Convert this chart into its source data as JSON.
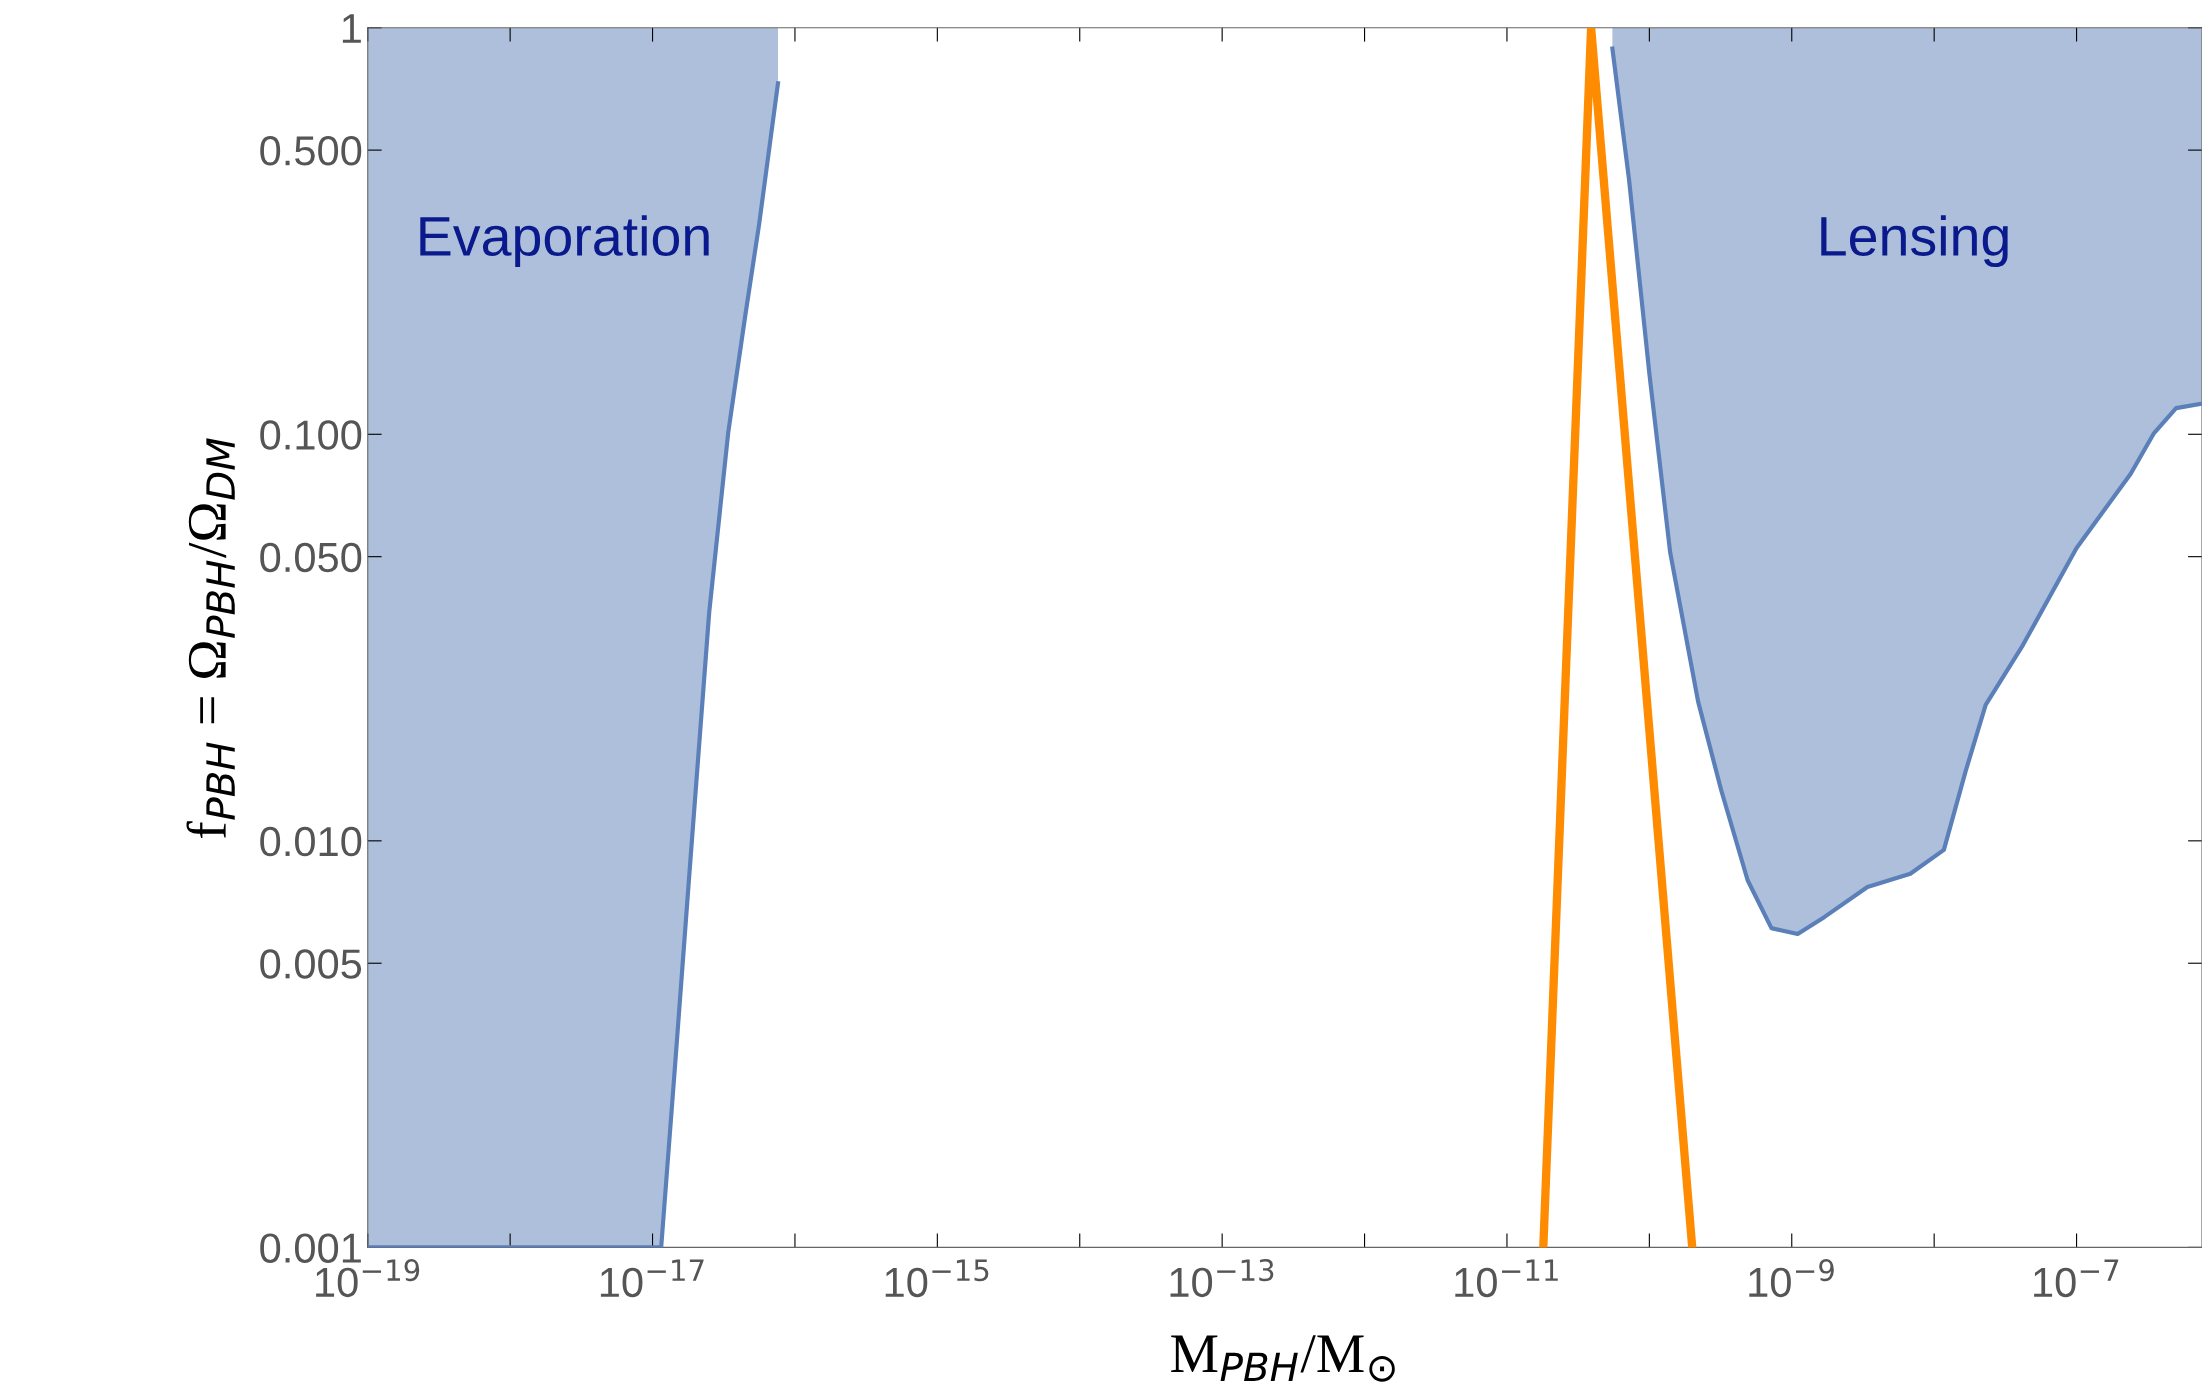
{
  "chart_data": {
    "type": "line",
    "xlabel": "M$_{PBH}$/M$_{⊙}$",
    "ylabel": "f$_{PBH}$ = Ω$_{PBH}$/Ω$_{DM}$",
    "log": "xy",
    "grid": false,
    "legend": false,
    "xlim": [
      1e-19,
      7.6e-07
    ],
    "ylim": [
      0.001,
      1
    ],
    "xticks": [
      {
        "value": 1e-19,
        "label": "10$^{−19}$"
      },
      {
        "value": 1e-18,
        "label": null
      },
      {
        "value": 1e-17,
        "label": "10$^{−17}$"
      },
      {
        "value": 1e-16,
        "label": null
      },
      {
        "value": 1e-15,
        "label": "10$^{−15}$"
      },
      {
        "value": 1e-14,
        "label": null
      },
      {
        "value": 1e-13,
        "label": "10$^{−13}$"
      },
      {
        "value": 1e-12,
        "label": null
      },
      {
        "value": 1e-11,
        "label": "10$^{−11}$"
      },
      {
        "value": 1e-10,
        "label": null
      },
      {
        "value": 1e-09,
        "label": "10$^{−9}$"
      },
      {
        "value": 1e-08,
        "label": null
      },
      {
        "value": 1e-07,
        "label": "10$^{−7}$"
      }
    ],
    "yticks": [
      {
        "value": 0.001,
        "label": "0.001"
      },
      {
        "value": 0.005,
        "label": "0.005"
      },
      {
        "value": 0.01,
        "label": "0.010"
      },
      {
        "value": 0.05,
        "label": "0.050"
      },
      {
        "value": 0.1,
        "label": "0.100"
      },
      {
        "value": 0.5,
        "label": "0.500"
      },
      1
    ],
    "series": [
      {
        "color": "#5b7fb8",
        "x": [
          1e-19,
          1.15e-17,
          1.45e-17,
          1.8e-17,
          2.5e-17,
          3.4e-17,
          4.5e-17,
          5.6e-17,
          7.6e-17
        ],
        "values": [
          0.001,
          0.001,
          0.0029,
          0.008,
          0.0365,
          0.101,
          0.198,
          0.328,
          0.73
        ],
        "lower": [
          0.001,
          0.001,
          0.0029,
          0.008,
          0.0365,
          0.101,
          0.198,
          0.328,
          0.73
        ],
        "upper": [
          1,
          1,
          1,
          1,
          1,
          1,
          1,
          1,
          1
        ]
      },
      {
        "color": "#5b7fb8",
        "x": [
          5.5e-11,
          7.2e-11,
          1e-10,
          1.4e-10,
          2.2e-10,
          3.2e-10,
          4.9e-10,
          7.2e-10,
          1.1e-09,
          1.7e-09,
          3.4e-09,
          6.8e-09,
          1.17e-08,
          1.66e-08,
          2.3e-08,
          4.2e-08,
          1e-07,
          2.4e-07,
          3.5e-07,
          5e-07,
          7.6e-07
        ],
        "values": [
          0.889,
          0.423,
          0.141,
          0.0512,
          0.022,
          0.0133,
          0.008,
          0.0061,
          0.0059,
          0.0065,
          0.0077,
          0.0083,
          0.0095,
          0.0148,
          0.0216,
          0.0303,
          0.0525,
          0.08,
          0.1007,
          0.116,
          0.119
        ],
        "lower": [
          0.889,
          0.423,
          0.141,
          0.0512,
          0.022,
          0.0133,
          0.008,
          0.0061,
          0.0059,
          0.0065,
          0.0077,
          0.0083,
          0.0095,
          0.0148,
          0.0216,
          0.0303,
          0.0525,
          0.08,
          0.1007,
          0.116,
          0.119
        ],
        "upper": [
          1,
          1,
          1,
          1,
          1,
          1,
          1,
          1,
          1,
          1,
          1,
          1,
          1,
          1,
          1,
          1,
          1,
          1,
          1,
          1,
          1
        ]
      },
      {
        "color": "#ff8c00",
        "x": [
          1.8e-11,
          3.9e-11,
          2e-10
        ],
        "values": [
          0.001,
          1,
          0.001
        ]
      }
    ],
    "annotations": [
      "Evaporation",
      "Lensing"
    ]
  }
}
